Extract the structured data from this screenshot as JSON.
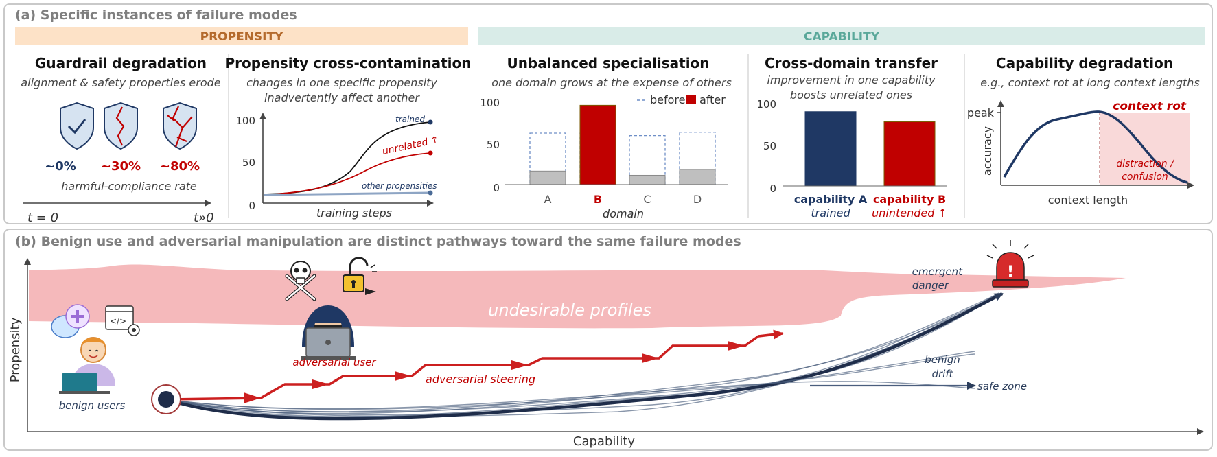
{
  "colors": {
    "navy": "#1f3864",
    "red": "#c00000",
    "gray": "#7f7f7f",
    "propensity_band": "#fde2c7",
    "propensity_text": "#b46a2c",
    "capability_band": "#d9ece8",
    "capability_text": "#5aa89a",
    "undesirable_band": "#f5b9bb",
    "shield_fill": "#d6e3f1",
    "bar_gray": "#bfbfbf"
  },
  "part_a": {
    "title": "(a) Specific instances of failure modes",
    "propensity_label": "PROPENSITY",
    "capability_label": "CAPABILITY",
    "guardrail": {
      "title": "Guardrail degradation",
      "subtitle": "alignment & safety properties erode",
      "shields": [
        {
          "icon": "shield-check-icon",
          "value": "~0%"
        },
        {
          "icon": "shield-crack-icon",
          "value": "~30%"
        },
        {
          "icon": "shield-broken-icon",
          "value": "~80%"
        }
      ],
      "rate_label": "harmful-compliance rate",
      "t_start": "t = 0",
      "t_end": "t»0"
    },
    "cross_contamination": {
      "title": "Propensity cross-contamination",
      "subtitle_line1": "changes in one specific propensity",
      "subtitle_line2": "inadvertently affect another",
      "y_ticks": [
        "100",
        "50",
        "0"
      ],
      "series": [
        {
          "name": "trained"
        },
        {
          "name": "unrelated ↑"
        },
        {
          "name": "other propensities"
        }
      ],
      "xlabel": "training steps"
    },
    "specialisation": {
      "title": "Unbalanced specialisation",
      "subtitle": "one domain grows at the expense of others",
      "legend_before": "before",
      "legend_after": "after",
      "y_ticks": [
        "100",
        "50",
        "0"
      ],
      "xlabel": "domain",
      "categories": [
        "A",
        "B",
        "C",
        "D"
      ],
      "before": [
        61,
        61,
        58,
        62
      ],
      "after": [
        16,
        94,
        11,
        18
      ]
    },
    "transfer": {
      "title": "Cross-domain transfer",
      "subtitle_line1": "improvement in one capability",
      "subtitle_line2": "boosts unrelated ones",
      "y_ticks": [
        "100",
        "50",
        "0"
      ],
      "values": [
        88,
        76
      ],
      "bars": [
        {
          "label": "capability A",
          "sub": "trained"
        },
        {
          "label": "capability B",
          "sub": "unintended ↑"
        }
      ]
    },
    "degradation": {
      "title": "Capability degradation",
      "subtitle": "e.g., context rot at long context lengths",
      "peak_label": "peak",
      "ylabel": "accuracy",
      "xlabel": "context length",
      "rot_label": "context rot",
      "zone_line1": "distraction /",
      "zone_line2": "confusion"
    }
  },
  "part_b": {
    "title": "(b) Benign use and adversarial manipulation are distinct pathways toward the same failure modes",
    "band_label": "undesirable profiles",
    "ylabel": "Propensity",
    "xlabel": "Capability",
    "benign_users": "benign users",
    "adversarial_user": "adversarial user",
    "adversarial_steering": "adversarial steering",
    "benign_drift_line1": "benign",
    "benign_drift_line2": "drift",
    "safe_zone": "safe zone",
    "emergent_line1": "emergent",
    "emergent_line2": "danger"
  }
}
